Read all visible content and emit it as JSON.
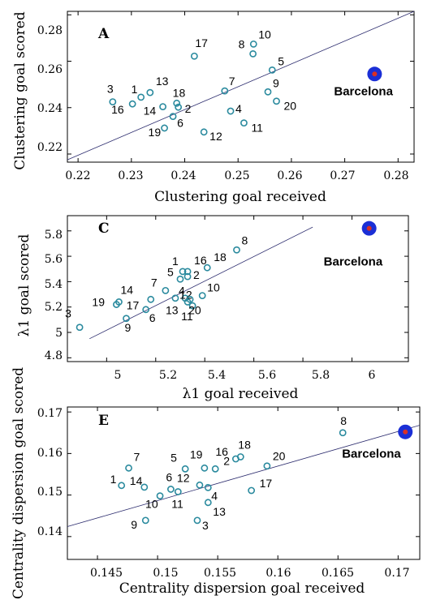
{
  "colors": {
    "point": "#2a8a9e",
    "fit_line": "#2c2c6e",
    "highlight_outer": "#1b2fd6",
    "highlight_inner": "#d93025"
  },
  "chart_data": [
    {
      "type": "scatter",
      "panel": "A",
      "xlabel": "Clustering goal received",
      "ylabel": "Clustering goal scored",
      "xlim": [
        0.218,
        0.283
      ],
      "ylim": [
        0.2165,
        0.2815
      ],
      "xticks": [
        0.22,
        0.23,
        0.24,
        0.25,
        0.26,
        0.27,
        0.28
      ],
      "xtick_labels": [
        "0.22",
        "0.23",
        "0.24",
        "0.25",
        "0.26",
        "0.27",
        "0.28"
      ],
      "yticks": [
        0.22,
        0.24,
        0.26,
        0.28
      ],
      "ytick_labels": [
        "0.22",
        "0.24",
        "0.26",
        "0.28"
      ],
      "fit_line": [
        [
          0.218,
          0.2175
        ],
        [
          0.283,
          0.2815
        ]
      ],
      "points": [
        {
          "label": "1",
          "x": 0.2318,
          "y": 0.2445
        },
        {
          "label": "2",
          "x": 0.2388,
          "y": 0.2402
        },
        {
          "label": "3",
          "x": 0.2265,
          "y": 0.2425
        },
        {
          "label": "4",
          "x": 0.2486,
          "y": 0.2385
        },
        {
          "label": "5",
          "x": 0.2564,
          "y": 0.2562
        },
        {
          "label": "6",
          "x": 0.2378,
          "y": 0.2362
        },
        {
          "label": "7",
          "x": 0.2475,
          "y": 0.2472
        },
        {
          "label": "8",
          "x": 0.2528,
          "y": 0.2632
        },
        {
          "label": "9",
          "x": 0.2556,
          "y": 0.2468
        },
        {
          "label": "10",
          "x": 0.2529,
          "y": 0.2674
        },
        {
          "label": "11",
          "x": 0.2511,
          "y": 0.2334
        },
        {
          "label": "12",
          "x": 0.2436,
          "y": 0.2295
        },
        {
          "label": "13",
          "x": 0.2335,
          "y": 0.2465
        },
        {
          "label": "14",
          "x": 0.2359,
          "y": 0.2404
        },
        {
          "label": "16",
          "x": 0.2302,
          "y": 0.2416
        },
        {
          "label": "17",
          "x": 0.2418,
          "y": 0.2622
        },
        {
          "label": "18",
          "x": 0.2385,
          "y": 0.2419
        },
        {
          "label": "19",
          "x": 0.2362,
          "y": 0.2312
        },
        {
          "label": "20",
          "x": 0.2572,
          "y": 0.2428
        }
      ],
      "highlight": {
        "label": "Barcelona",
        "x": 0.2756,
        "y": 0.2545
      }
    },
    {
      "type": "scatter",
      "panel": "C",
      "xlabel": "λ1 goal received",
      "ylabel": "λ1 goal scored",
      "xlim": [
        4.84,
        6.23
      ],
      "ylim": [
        4.77,
        5.92
      ],
      "xticks": [
        5.0,
        5.2,
        5.4,
        5.6,
        5.8,
        6.0
      ],
      "xtick_labels": [
        "5",
        "5.2",
        "5.4",
        "5.6",
        "5.8",
        "6"
      ],
      "yticks": [
        4.8,
        5.0,
        5.2,
        5.4,
        5.6,
        5.8
      ],
      "ytick_labels": [
        "4.8",
        "5",
        "5.2",
        "5.4",
        "5.6",
        "5.8"
      ],
      "fit_line": [
        [
          4.93,
          4.95
        ],
        [
          5.84,
          5.83
        ]
      ],
      "points": [
        {
          "label": "1",
          "x": 5.31,
          "y": 5.48
        },
        {
          "label": "2",
          "x": 5.33,
          "y": 5.44
        },
        {
          "label": "3",
          "x": 4.89,
          "y": 5.04
        },
        {
          "label": "4",
          "x": 5.32,
          "y": 5.27
        },
        {
          "label": "5",
          "x": 5.3,
          "y": 5.42
        },
        {
          "label": "6",
          "x": 5.16,
          "y": 5.18
        },
        {
          "label": "7",
          "x": 5.24,
          "y": 5.33
        },
        {
          "label": "8",
          "x": 5.53,
          "y": 5.65
        },
        {
          "label": "9",
          "x": 5.08,
          "y": 5.11
        },
        {
          "label": "10",
          "x": 5.39,
          "y": 5.29
        },
        {
          "label": "11",
          "x": 5.35,
          "y": 5.21
        },
        {
          "label": "12",
          "x": 5.33,
          "y": 5.24
        },
        {
          "label": "13",
          "x": 5.28,
          "y": 5.27
        },
        {
          "label": "14",
          "x": 5.05,
          "y": 5.24
        },
        {
          "label": "16",
          "x": 5.33,
          "y": 5.48
        },
        {
          "label": "17",
          "x": 5.18,
          "y": 5.26
        },
        {
          "label": "18",
          "x": 5.41,
          "y": 5.51
        },
        {
          "label": "19",
          "x": 5.04,
          "y": 5.22
        },
        {
          "label": "20",
          "x": 5.34,
          "y": 5.26
        }
      ],
      "highlight": {
        "label": "Barcelona",
        "x": 6.07,
        "y": 5.82
      }
    },
    {
      "type": "scatter",
      "panel": "E",
      "xlabel": "Centrality dispersion goal received",
      "ylabel": "Centrality dispersion goal scored",
      "xlim": [
        0.1425,
        0.1718
      ],
      "ylim": [
        0.1345,
        0.1712
      ],
      "xticks": [
        0.145,
        0.15,
        0.155,
        0.16,
        0.165,
        0.17
      ],
      "xtick_labels": [
        "0.145",
        "0.15",
        "0.155",
        "0.16",
        "0.165",
        "0.17"
      ],
      "yticks": [
        0.14,
        0.15,
        0.16,
        0.17
      ],
      "ytick_labels": [
        "0.14",
        "0.15",
        "0.16",
        "0.17"
      ],
      "fit_line": [
        [
          0.1425,
          0.1424
        ],
        [
          0.1718,
          0.1668
        ]
      ],
      "points": [
        {
          "label": "1",
          "x": 0.147,
          "y": 0.1523
        },
        {
          "label": "2",
          "x": 0.1548,
          "y": 0.1563
        },
        {
          "label": "3",
          "x": 0.1533,
          "y": 0.1439
        },
        {
          "label": "4",
          "x": 0.1542,
          "y": 0.1518
        },
        {
          "label": "5",
          "x": 0.1523,
          "y": 0.1563
        },
        {
          "label": "6",
          "x": 0.1511,
          "y": 0.1514
        },
        {
          "label": "7",
          "x": 0.1476,
          "y": 0.1565
        },
        {
          "label": "8",
          "x": 0.1654,
          "y": 0.165
        },
        {
          "label": "9",
          "x": 0.149,
          "y": 0.1439
        },
        {
          "label": "10",
          "x": 0.1502,
          "y": 0.1498
        },
        {
          "label": "11",
          "x": 0.1517,
          "y": 0.1508
        },
        {
          "label": "12",
          "x": 0.1535,
          "y": 0.1524
        },
        {
          "label": "13",
          "x": 0.1542,
          "y": 0.1482
        },
        {
          "label": "14",
          "x": 0.1489,
          "y": 0.1519
        },
        {
          "label": "16",
          "x": 0.1565,
          "y": 0.1587
        },
        {
          "label": "17",
          "x": 0.1578,
          "y": 0.1511
        },
        {
          "label": "18",
          "x": 0.1569,
          "y": 0.1592
        },
        {
          "label": "19",
          "x": 0.1539,
          "y": 0.1565
        },
        {
          "label": "20",
          "x": 0.1591,
          "y": 0.157
        }
      ],
      "highlight": {
        "label": "Barcelona",
        "x": 0.1706,
        "y": 0.1652
      }
    }
  ]
}
